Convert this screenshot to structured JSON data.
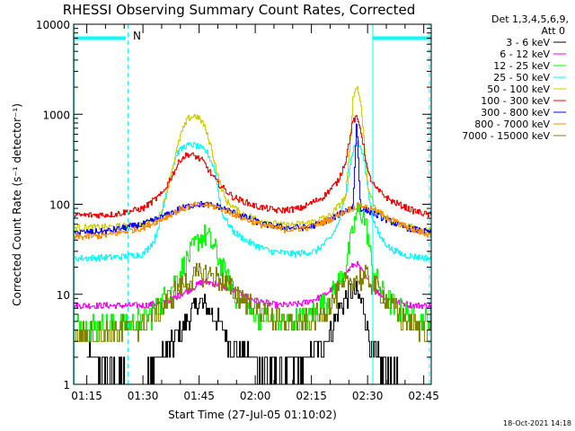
{
  "chart_data": {
    "type": "line",
    "title": "RHESSI Observing Summary Count Rates, Corrected",
    "xlabel": "Start Time (27-Jul-05 01:10:02)",
    "ylabel": "Corrected Count Rate (s⁻¹ detector⁻¹)",
    "yscale": "log",
    "ylim": [
      1,
      10000
    ],
    "xlim_minutes": [
      1.5,
      97
    ],
    "x_ticks": [
      "01:15",
      "01:30",
      "01:45",
      "02:00",
      "02:15",
      "02:30",
      "02:45"
    ],
    "x_tick_minutes": [
      5,
      20,
      35,
      50,
      65,
      80,
      95
    ],
    "y_ticks": [
      "1",
      "10",
      "100",
      "1000",
      "10000"
    ],
    "y_tick_values": [
      1,
      10,
      100,
      1000,
      10000
    ],
    "grid": false,
    "legend_position": "right",
    "legend_header": [
      "Det 1,3,4,5,6,9,",
      "Att 0"
    ],
    "annotation": "N",
    "timestamp": "18-Oct-2021 14:18",
    "markers": {
      "night_bars": [
        [
          1.5,
          15.4
        ],
        [
          81.5,
          97
        ]
      ],
      "dashed_lines_minutes": [
        16.0,
        96.5
      ],
      "solid_lines_minutes": [
        1.6,
        81.4
      ],
      "bar_level": 7000
    },
    "series": [
      {
        "name": "3 - 6 keV",
        "color": "#000000",
        "x": [
          5,
          12,
          18,
          22,
          25,
          28,
          31,
          33,
          35,
          37,
          40,
          43,
          47,
          52,
          57,
          62,
          66,
          70,
          72,
          74,
          75,
          76,
          77,
          78,
          79,
          80,
          81,
          83,
          86,
          90,
          94
        ],
        "y": [
          2,
          1.5,
          1,
          1.3,
          2,
          3,
          4.5,
          6.5,
          8,
          7,
          5,
          3,
          2,
          1.5,
          1.5,
          1.6,
          2.2,
          4,
          6.5,
          9,
          10.5,
          11,
          10,
          8.5,
          7,
          4,
          2.5,
          1.8,
          1.3,
          1,
          0.9
        ]
      },
      {
        "name": "6 - 12 keV",
        "color": "#ff00ff",
        "x": [
          1.6,
          10,
          20,
          25,
          28,
          32,
          36,
          40,
          44,
          50,
          56,
          62,
          68,
          72,
          74,
          76,
          77,
          78,
          80,
          82,
          86,
          92,
          97
        ],
        "y": [
          7.5,
          7.5,
          7.5,
          8,
          9,
          11,
          14,
          13,
          11,
          8.5,
          7.5,
          7.8,
          9.5,
          13,
          17,
          21,
          22,
          19,
          14,
          11,
          8.5,
          7.5,
          7.5
        ]
      },
      {
        "name": "12 - 25 keV",
        "color": "#00ff00",
        "x": [
          1.6,
          12,
          20,
          24,
          27,
          30,
          33,
          35,
          37,
          39,
          42,
          46,
          52,
          58,
          64,
          70,
          74,
          76,
          77,
          78,
          79,
          80,
          81,
          84,
          88,
          94,
          97
        ],
        "y": [
          4.5,
          4.5,
          5,
          7,
          11,
          18,
          30,
          42,
          45,
          32,
          16,
          8,
          5.5,
          5,
          5.5,
          9,
          20,
          50,
          80,
          85,
          70,
          45,
          20,
          10,
          6.5,
          5,
          5
        ]
      },
      {
        "name": "25 - 50 keV",
        "color": "#00ffff",
        "x": [
          1.6,
          14,
          20,
          23,
          25,
          27,
          29,
          31,
          33,
          35,
          37,
          39,
          41,
          44,
          48,
          54,
          60,
          66,
          70,
          72,
          74,
          75,
          76,
          77,
          78,
          79,
          80,
          81,
          83,
          86,
          90,
          97
        ],
        "y": [
          25,
          26,
          28,
          40,
          80,
          200,
          370,
          440,
          460,
          430,
          380,
          250,
          80,
          50,
          38,
          30,
          28,
          30,
          42,
          60,
          120,
          250,
          400,
          500,
          430,
          300,
          150,
          75,
          45,
          32,
          27,
          25
        ]
      },
      {
        "name": "50 - 100 keV",
        "color": "#cccc00",
        "x": [
          1.6,
          12,
          20,
          24,
          26,
          28,
          30,
          32,
          34,
          36,
          38,
          40,
          42,
          46,
          52,
          58,
          64,
          70,
          74,
          75,
          76,
          77,
          78,
          79,
          80,
          82,
          86,
          92,
          97
        ],
        "y": [
          55,
          56,
          60,
          70,
          120,
          280,
          600,
          900,
          970,
          800,
          450,
          200,
          110,
          80,
          65,
          58,
          62,
          75,
          120,
          350,
          1500,
          2100,
          1400,
          500,
          150,
          90,
          65,
          55,
          50
        ]
      },
      {
        "name": "100 - 300 keV",
        "color": "#ff0000",
        "x": [
          1.6,
          12,
          20,
          25,
          28,
          30,
          32,
          34,
          36,
          38,
          40,
          44,
          50,
          56,
          62,
          68,
          72,
          74,
          75,
          76,
          77,
          78,
          79,
          80,
          82,
          86,
          92,
          97
        ],
        "y": [
          75,
          77,
          90,
          130,
          220,
          320,
          360,
          340,
          300,
          220,
          170,
          120,
          95,
          85,
          90,
          120,
          180,
          300,
          500,
          850,
          900,
          700,
          400,
          220,
          150,
          110,
          85,
          75
        ]
      },
      {
        "name": "300 - 800 keV",
        "color": "#0000ff",
        "x": [
          1.6,
          10,
          20,
          26,
          30,
          34,
          36,
          40,
          46,
          52,
          58,
          64,
          70,
          74,
          76,
          77,
          78,
          80,
          84,
          90,
          97
        ],
        "y": [
          48,
          50,
          60,
          75,
          90,
          100,
          100,
          95,
          75,
          60,
          55,
          55,
          68,
          85,
          95,
          850,
          90,
          85,
          70,
          55,
          48
        ]
      },
      {
        "name": "800 - 7000 keV",
        "color": "#ff8c00",
        "x": [
          1.6,
          10,
          20,
          26,
          30,
          34,
          37,
          40,
          46,
          52,
          58,
          64,
          70,
          74,
          78,
          82,
          86,
          92,
          97
        ],
        "y": [
          43,
          45,
          55,
          72,
          88,
          98,
          98,
          92,
          72,
          58,
          52,
          55,
          68,
          85,
          98,
          85,
          68,
          52,
          45
        ]
      },
      {
        "name": "7000 - 15000 keV",
        "color": "#808000",
        "x": [
          1.6,
          10,
          20,
          26,
          30,
          33,
          36,
          39,
          44,
          50,
          56,
          62,
          68,
          72,
          76,
          80,
          84,
          88,
          92,
          97
        ],
        "y": [
          3.5,
          3.8,
          4.5,
          8,
          12,
          15,
          17,
          16,
          11,
          7,
          5,
          4.5,
          6,
          10,
          15,
          15,
          10,
          6,
          4.5,
          3.8
        ]
      }
    ]
  }
}
